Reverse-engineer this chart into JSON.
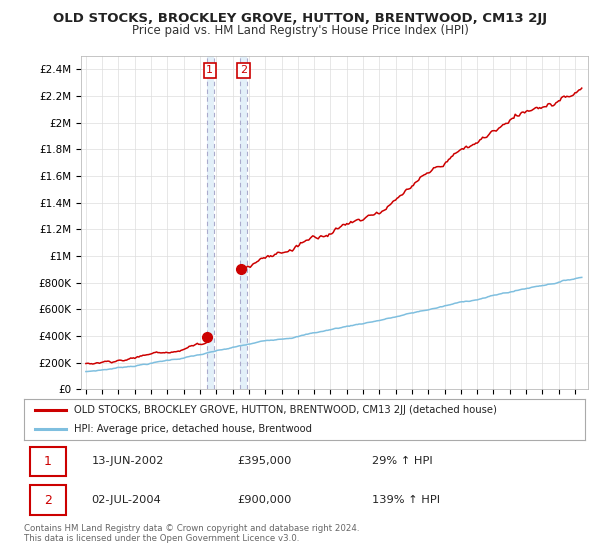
{
  "title": "OLD STOCKS, BROCKLEY GROVE, HUTTON, BRENTWOOD, CM13 2JJ",
  "subtitle": "Price paid vs. HM Land Registry's House Price Index (HPI)",
  "ylabel_ticks": [
    "£0",
    "£200K",
    "£400K",
    "£600K",
    "£800K",
    "£1M",
    "£1.2M",
    "£1.4M",
    "£1.6M",
    "£1.8M",
    "£2M",
    "£2.2M",
    "£2.4M"
  ],
  "ytick_values": [
    0,
    200000,
    400000,
    600000,
    800000,
    1000000,
    1200000,
    1400000,
    1600000,
    1800000,
    2000000,
    2200000,
    2400000
  ],
  "ylim": [
    0,
    2500000
  ],
  "sale1_date": 2002.45,
  "sale1_price": 395000,
  "sale2_date": 2004.5,
  "sale2_price": 900000,
  "hpi_color": "#7fbfdf",
  "price_color": "#cc0000",
  "legend_label1": "OLD STOCKS, BROCKLEY GROVE, HUTTON, BRENTWOOD, CM13 2JJ (detached house)",
  "legend_label2": "HPI: Average price, detached house, Brentwood",
  "annotation1_label": "1",
  "annotation1_date": "13-JUN-2002",
  "annotation1_price": "£395,000",
  "annotation1_hpi": "29% ↑ HPI",
  "annotation2_label": "2",
  "annotation2_date": "02-JUL-2004",
  "annotation2_price": "£900,000",
  "annotation2_hpi": "139% ↑ HPI",
  "footer": "Contains HM Land Registry data © Crown copyright and database right 2024.\nThis data is licensed under the Open Government Licence v3.0.",
  "background_color": "#ffffff",
  "grid_color": "#dddddd",
  "shade_color": "#cce4f5"
}
